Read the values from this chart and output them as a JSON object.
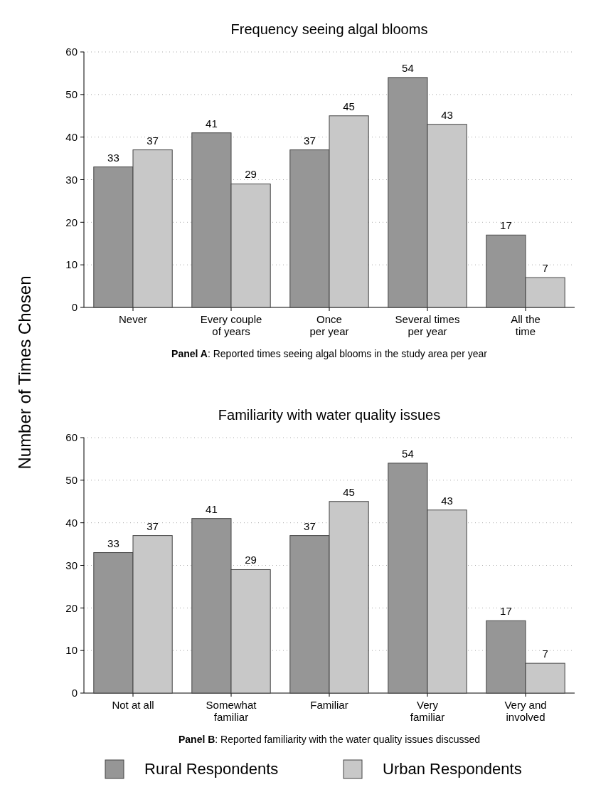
{
  "chart_data": [
    {
      "type": "bar",
      "title": "Frequency seeing algal blooms",
      "ylabel": "Number of Times Chosen",
      "categories": [
        "Never",
        "Every couple\nof years",
        "Once\nper year",
        "Several times\nper year",
        "All the\ntime"
      ],
      "series": [
        {
          "color": "#969696",
          "values": [
            33,
            41,
            37,
            54,
            17
          ]
        },
        {
          "color": "#c8c8c8",
          "values": [
            37,
            29,
            45,
            43,
            7
          ]
        }
      ],
      "ylim": [
        0,
        60
      ],
      "yticks": [
        0,
        10,
        20,
        30,
        40,
        50,
        60
      ],
      "grid": "y",
      "data_labels": true,
      "legend": false,
      "annotations": [
        "Panel A: Reported times seeing algal blooms in the study area per year"
      ]
    },
    {
      "type": "bar",
      "title": "Familiarity with water quality issues",
      "categories": [
        "Not at all",
        "Somewhat\nfamiliar",
        "Familiar",
        "Very\nfamiliar",
        "Very and\ninvolved"
      ],
      "series": [
        {
          "name": "Rural Respondents",
          "color": "#969696",
          "values": [
            33,
            41,
            37,
            54,
            17
          ]
        },
        {
          "name": "Urban Respondents",
          "color": "#c8c8c8",
          "values": [
            37,
            29,
            45,
            43,
            7
          ]
        }
      ],
      "ylim": [
        0,
        60
      ],
      "yticks": [
        0,
        10,
        20,
        30,
        40,
        50,
        60
      ],
      "grid": "y",
      "data_labels": true,
      "legend": "bottom",
      "annotations": [
        "Panel B: Reported familiarity with the water quality issues discussed"
      ]
    }
  ]
}
